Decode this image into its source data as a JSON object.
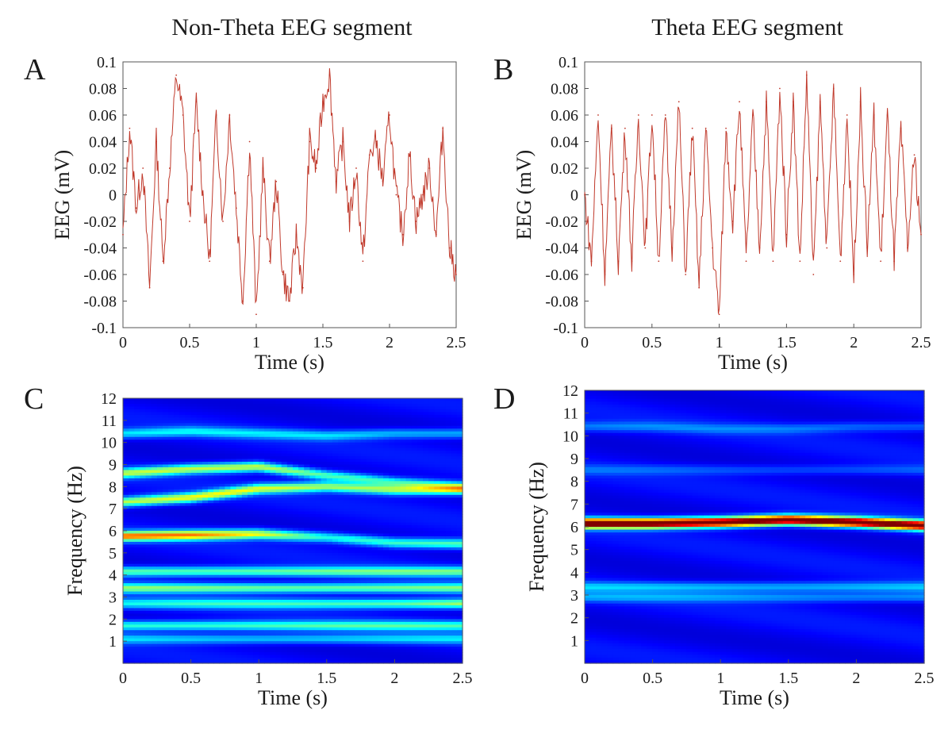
{
  "figure": {
    "column_titles": [
      "Non-Theta EEG segment",
      "Theta EEG segment"
    ],
    "colors": {
      "trace": "#c0392b",
      "axis": "#555555",
      "text": "#1a1a1a"
    },
    "colormap": "jet"
  },
  "chart_data": [
    {
      "id": "A",
      "panel_label": "A",
      "type": "line",
      "title": "Non-Theta EEG segment",
      "xlabel": "Time (s)",
      "ylabel": "EEG (mV)",
      "xlim": [
        0,
        2.5
      ],
      "ylim": [
        -0.1,
        0.1
      ],
      "xticks": [
        "0",
        "0.5",
        "1",
        "1.5",
        "2",
        "2.5"
      ],
      "yticks": [
        "0.1",
        "0.08",
        "0.06",
        "0.04",
        "0.02",
        "0",
        "-0.02",
        "-0.04",
        "-0.06",
        "-0.08",
        "-0.1"
      ],
      "grid": false,
      "series": [
        {
          "name": "EEG",
          "x": [
            0,
            0.05,
            0.1,
            0.15,
            0.2,
            0.25,
            0.3,
            0.35,
            0.4,
            0.45,
            0.5,
            0.55,
            0.6,
            0.65,
            0.7,
            0.75,
            0.8,
            0.85,
            0.9,
            0.95,
            1.0,
            1.05,
            1.1,
            1.15,
            1.2,
            1.25,
            1.3,
            1.35,
            1.4,
            1.45,
            1.5,
            1.55,
            1.6,
            1.65,
            1.7,
            1.75,
            1.8,
            1.85,
            1.9,
            1.95,
            2.0,
            2.05,
            2.1,
            2.15,
            2.2,
            2.25,
            2.3,
            2.35,
            2.4,
            2.45,
            2.5
          ],
          "values": [
            -0.03,
            0.05,
            -0.01,
            0.02,
            -0.07,
            0.04,
            -0.05,
            0.02,
            0.09,
            0.06,
            -0.02,
            0.07,
            0.0,
            -0.05,
            0.06,
            -0.02,
            0.06,
            -0.01,
            -0.08,
            0.04,
            -0.09,
            0.02,
            -0.05,
            0.01,
            -0.06,
            -0.08,
            -0.03,
            -0.07,
            0.04,
            0.02,
            0.07,
            0.09,
            0.01,
            0.04,
            -0.02,
            0.02,
            -0.05,
            0.03,
            0.04,
            0.01,
            0.06,
            0.0,
            -0.03,
            0.03,
            -0.02,
            0.0,
            0.02,
            -0.03,
            0.05,
            -0.04,
            -0.06
          ]
        }
      ]
    },
    {
      "id": "B",
      "panel_label": "B",
      "type": "line",
      "title": "Theta EEG segment",
      "xlabel": "Time (s)",
      "ylabel": "EEG (mV)",
      "xlim": [
        0,
        2.5
      ],
      "ylim": [
        -0.1,
        0.1
      ],
      "xticks": [
        "0",
        "0.5",
        "1",
        "1.5",
        "2",
        "2.5"
      ],
      "yticks": [
        "0.1",
        "0.08",
        "0.06",
        "0.04",
        "0.02",
        "0",
        "-0.02",
        "-0.04",
        "-0.06",
        "-0.08",
        "-0.1"
      ],
      "grid": false,
      "series": [
        {
          "name": "EEG",
          "x": [
            0,
            0.05,
            0.1,
            0.15,
            0.2,
            0.25,
            0.3,
            0.35,
            0.4,
            0.45,
            0.5,
            0.55,
            0.6,
            0.65,
            0.7,
            0.75,
            0.8,
            0.85,
            0.9,
            0.95,
            1.0,
            1.05,
            1.1,
            1.15,
            1.2,
            1.25,
            1.3,
            1.35,
            1.4,
            1.45,
            1.5,
            1.55,
            1.6,
            1.65,
            1.7,
            1.75,
            1.8,
            1.85,
            1.9,
            1.95,
            2.0,
            2.05,
            2.1,
            2.15,
            2.2,
            2.25,
            2.3,
            2.35,
            2.4,
            2.45,
            2.5
          ],
          "values": [
            0.0,
            -0.05,
            0.06,
            -0.06,
            0.05,
            -0.05,
            0.05,
            -0.05,
            0.06,
            -0.04,
            0.06,
            -0.05,
            0.06,
            -0.04,
            0.07,
            -0.06,
            0.05,
            -0.07,
            0.05,
            -0.04,
            -0.09,
            0.05,
            -0.02,
            0.07,
            -0.05,
            0.06,
            -0.04,
            0.07,
            -0.05,
            0.08,
            -0.03,
            0.07,
            -0.05,
            0.09,
            -0.06,
            0.07,
            -0.04,
            0.08,
            -0.05,
            0.06,
            -0.06,
            0.07,
            -0.04,
            0.06,
            -0.05,
            0.06,
            -0.05,
            0.05,
            -0.04,
            0.03,
            -0.03
          ]
        }
      ]
    },
    {
      "id": "C",
      "panel_label": "C",
      "type": "heatmap",
      "xlabel": "Time (s)",
      "ylabel": "Frequency (Hz)",
      "xlim": [
        0,
        2.5
      ],
      "ylim": [
        0,
        12
      ],
      "xticks": [
        "0",
        "0.5",
        "1",
        "1.5",
        "2",
        "2.5"
      ],
      "yticks": [
        "1",
        "2",
        "3",
        "4",
        "5",
        "6",
        "7",
        "8",
        "9",
        "10",
        "11",
        "12"
      ],
      "colorscale_range": [
        0,
        1
      ],
      "ridges": [
        {
          "f": [
            5.75,
            5.8,
            5.85,
            5.7,
            5.45,
            5.4
          ],
          "peak": [
            0.64,
            0.62,
            0.5,
            0.3,
            0.34,
            0.36
          ]
        },
        {
          "f": [
            7.3,
            7.5,
            7.9,
            8.0,
            7.85,
            7.85
          ],
          "peak": [
            0.46,
            0.5,
            0.46,
            0.42,
            0.44,
            0.47
          ]
        },
        {
          "f": [
            8.6,
            8.8,
            8.9,
            8.5,
            8.2,
            8.0
          ],
          "peak": [
            0.42,
            0.45,
            0.48,
            0.36,
            0.32,
            0.3
          ]
        },
        {
          "f": [
            10.4,
            10.5,
            10.4,
            10.3,
            10.4,
            10.4
          ],
          "peak": [
            0.24,
            0.24,
            0.22,
            0.22,
            0.2,
            0.2
          ]
        },
        {
          "f": [
            4.15,
            4.15,
            4.15,
            4.15,
            4.15,
            4.15
          ],
          "peak": [
            0.36,
            0.36,
            0.36,
            0.36,
            0.36,
            0.36
          ]
        },
        {
          "f": [
            3.4,
            3.4,
            3.4,
            3.4,
            3.4,
            3.4
          ],
          "peak": [
            0.38,
            0.38,
            0.38,
            0.38,
            0.38,
            0.38
          ]
        },
        {
          "f": [
            2.7,
            2.7,
            2.7,
            2.7,
            2.7,
            2.7
          ],
          "peak": [
            0.26,
            0.28,
            0.3,
            0.32,
            0.36,
            0.44
          ]
        },
        {
          "f": [
            1.7,
            1.7,
            1.7,
            1.7,
            1.7,
            1.7
          ],
          "peak": [
            0.32,
            0.32,
            0.32,
            0.32,
            0.32,
            0.32
          ]
        },
        {
          "f": [
            1.1,
            1.1,
            1.1,
            1.1,
            1.1,
            1.1
          ],
          "peak": [
            0.22,
            0.22,
            0.22,
            0.22,
            0.22,
            0.22
          ]
        }
      ]
    },
    {
      "id": "D",
      "panel_label": "D",
      "type": "heatmap",
      "xlabel": "Time (s)",
      "ylabel": "Frequency (Hz)",
      "xlim": [
        0,
        2.5
      ],
      "ylim": [
        0,
        12
      ],
      "xticks": [
        "0",
        "0.5",
        "1",
        "1.5",
        "2",
        "2.5"
      ],
      "yticks": [
        "1",
        "2",
        "3",
        "4",
        "5",
        "6",
        "7",
        "8",
        "9",
        "10",
        "11",
        "12"
      ],
      "colorscale_range": [
        0,
        1
      ],
      "ridges": [
        {
          "f": [
            6.15,
            6.15,
            6.2,
            6.3,
            6.2,
            6.05
          ],
          "peak": [
            1.0,
            1.0,
            1.0,
            1.0,
            1.0,
            0.95
          ]
        },
        {
          "f": [
            3.35,
            3.35,
            3.35,
            3.35,
            3.35,
            3.35
          ],
          "peak": [
            0.2,
            0.2,
            0.2,
            0.2,
            0.2,
            0.2
          ]
        },
        {
          "f": [
            2.9,
            2.9,
            2.9,
            2.9,
            2.9,
            2.9
          ],
          "peak": [
            0.16,
            0.16,
            0.16,
            0.16,
            0.16,
            0.16
          ]
        },
        {
          "f": [
            10.4,
            10.4,
            10.3,
            10.3,
            10.4,
            10.4
          ],
          "peak": [
            0.13,
            0.13,
            0.12,
            0.12,
            0.12,
            0.12
          ]
        },
        {
          "f": [
            8.5,
            8.5,
            8.5,
            8.5,
            8.5,
            8.5
          ],
          "peak": [
            0.1,
            0.1,
            0.1,
            0.1,
            0.1,
            0.1
          ]
        }
      ]
    }
  ]
}
